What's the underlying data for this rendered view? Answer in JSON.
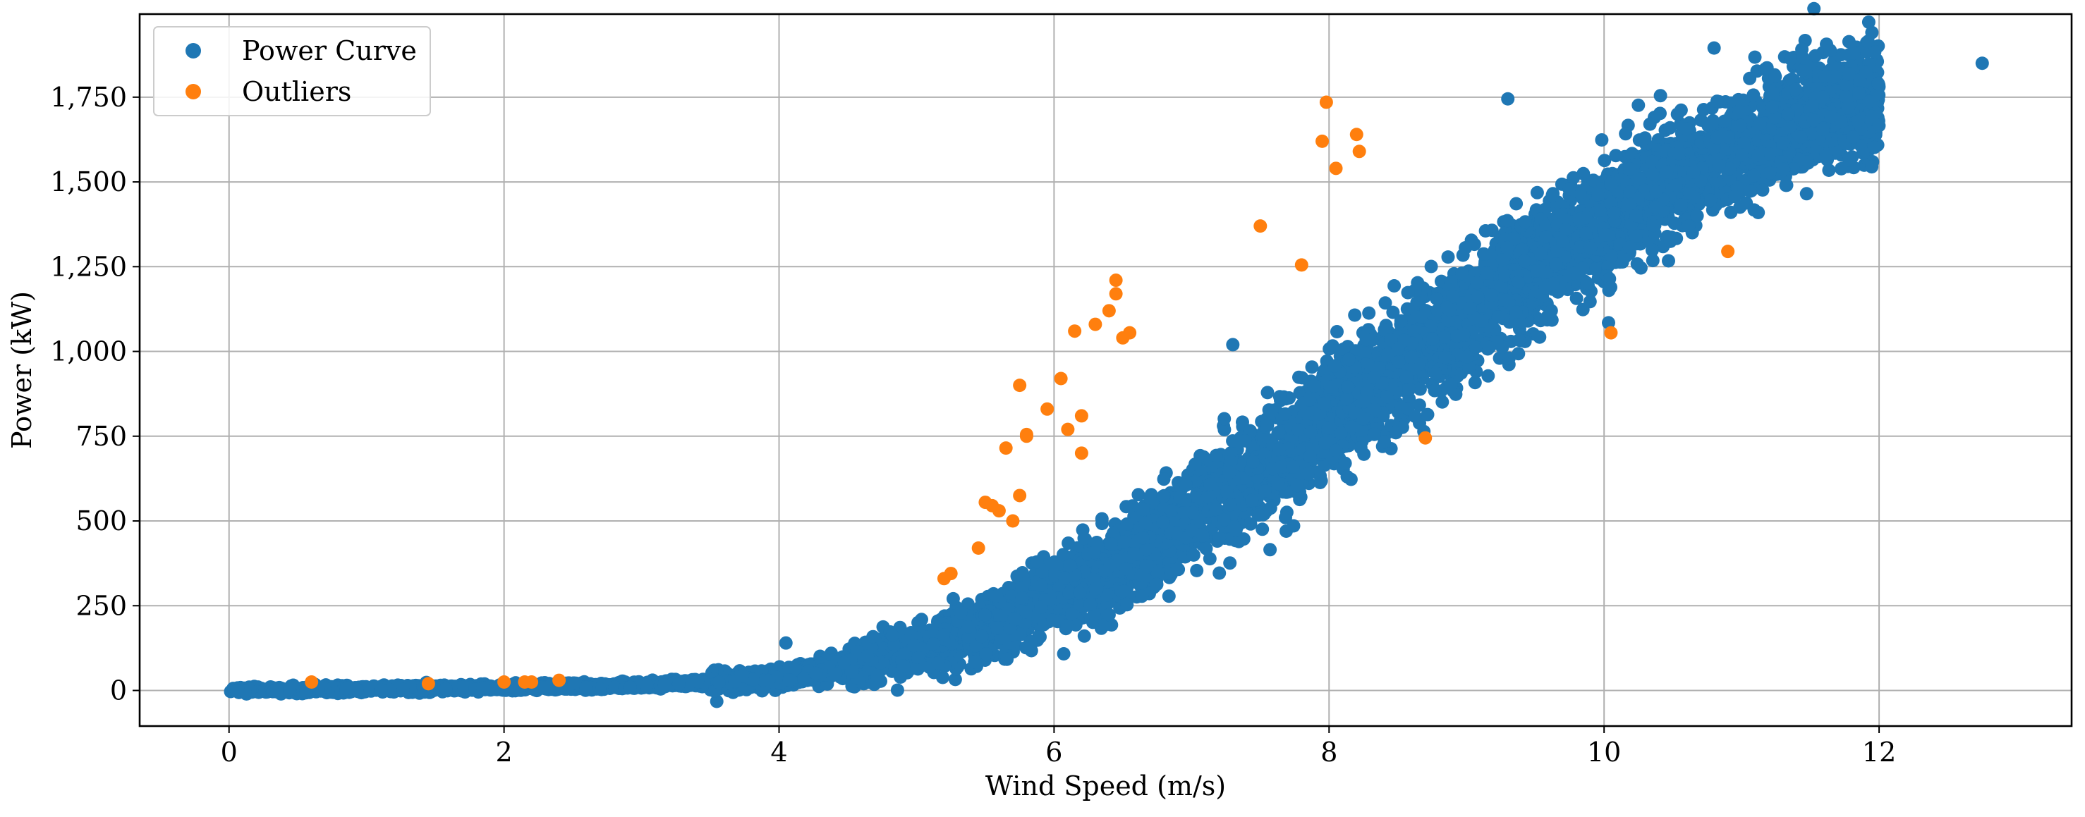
{
  "chart_data": {
    "type": "scatter",
    "title": "",
    "xlabel": "Wind Speed (m/s)",
    "ylabel": "Power (kW)",
    "xlim": [
      -0.65,
      13.4
    ],
    "ylim": [
      -105,
      1995
    ],
    "x_ticks": [
      0,
      2,
      4,
      6,
      8,
      10,
      12
    ],
    "x_tick_labels": [
      "0",
      "2",
      "4",
      "6",
      "8",
      "10",
      "12"
    ],
    "y_ticks": [
      0,
      250,
      500,
      750,
      1000,
      1250,
      1500,
      1750
    ],
    "y_tick_labels": [
      "0",
      "250",
      "500",
      "750",
      "1,000",
      "1,250",
      "1,500",
      "1,750"
    ],
    "grid": true,
    "legend_position": "top-left",
    "series": [
      {
        "name": "Power Curve",
        "color": "#1f77b4",
        "curve_note": "dense cloud of several thousand points following a cubic power curve",
        "curve_centerline": [
          [
            0,
            0
          ],
          [
            2,
            8
          ],
          [
            3,
            15
          ],
          [
            4,
            35
          ],
          [
            4.5,
            80
          ],
          [
            5,
            130
          ],
          [
            5.5,
            190
          ],
          [
            6,
            270
          ],
          [
            6.5,
            380
          ],
          [
            7,
            520
          ],
          [
            7.5,
            650
          ],
          [
            8,
            800
          ],
          [
            8.5,
            960
          ],
          [
            9,
            1100
          ],
          [
            9.5,
            1250
          ],
          [
            10,
            1380
          ],
          [
            10.5,
            1510
          ],
          [
            11,
            1610
          ],
          [
            11.5,
            1690
          ],
          [
            12,
            1760
          ]
        ],
        "notable_points": [
          {
            "x": 12.75,
            "y": 1850
          },
          {
            "x": 10.8,
            "y": 1895
          },
          {
            "x": 9.3,
            "y": 1745
          },
          {
            "x": 4.05,
            "y": 140
          },
          {
            "x": 7.3,
            "y": 1020
          }
        ]
      },
      {
        "name": "Outliers",
        "color": "#ff7f0e",
        "x": [
          0.6,
          1.45,
          2.0,
          2.15,
          2.2,
          2.4,
          5.2,
          5.25,
          5.45,
          5.5,
          5.55,
          5.6,
          5.65,
          5.7,
          5.75,
          5.75,
          5.8,
          5.8,
          5.95,
          6.05,
          6.1,
          6.15,
          6.2,
          6.2,
          6.3,
          6.4,
          6.45,
          6.45,
          6.5,
          6.55,
          7.5,
          7.8,
          7.95,
          7.98,
          8.05,
          8.2,
          8.22,
          8.7,
          10.05,
          10.9
        ],
        "y": [
          25,
          20,
          25,
          25,
          25,
          30,
          330,
          345,
          420,
          555,
          545,
          530,
          715,
          500,
          575,
          900,
          750,
          755,
          830,
          920,
          770,
          1060,
          810,
          700,
          1080,
          1120,
          1210,
          1170,
          1040,
          1055,
          1370,
          1255,
          1620,
          1735,
          1540,
          1640,
          1590,
          745,
          1055,
          1295
        ]
      }
    ]
  }
}
